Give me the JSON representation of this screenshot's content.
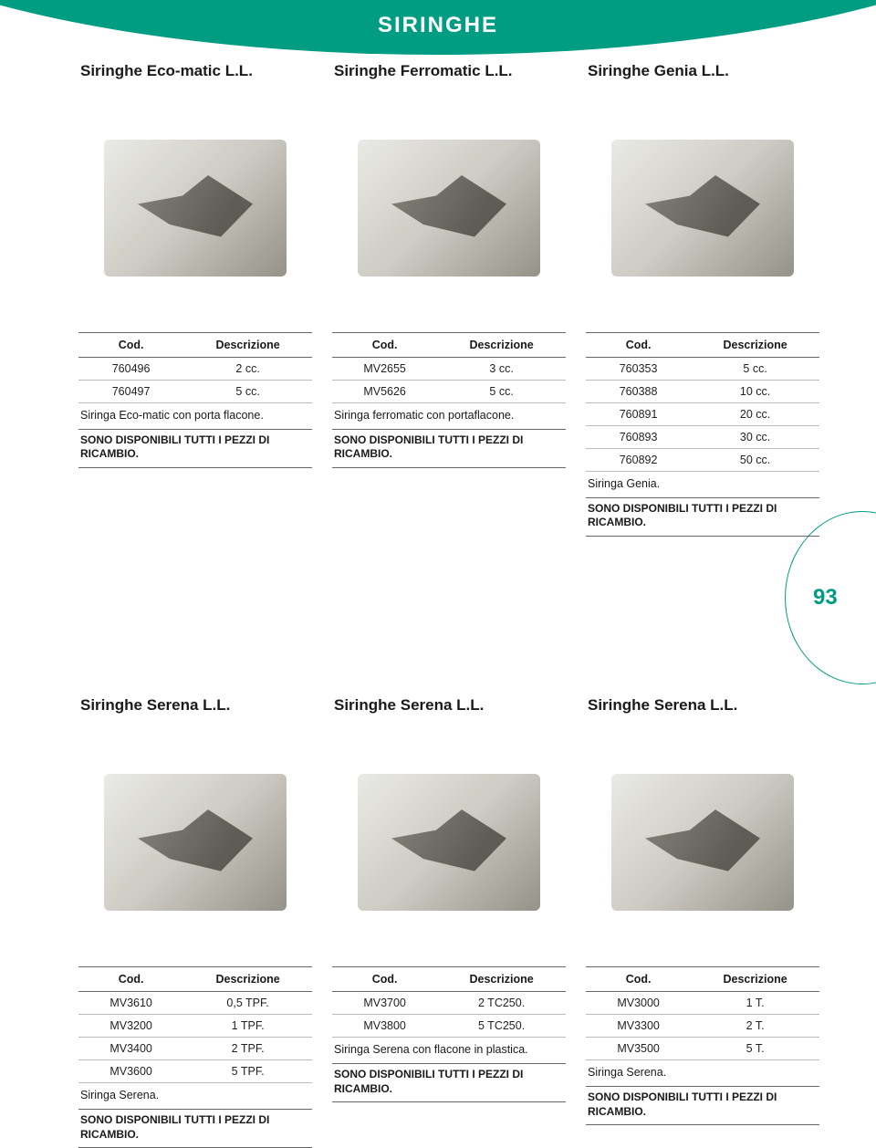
{
  "page": {
    "header_title": "SIRINGHE",
    "page_number": "93",
    "colors": {
      "accent": "#009d82",
      "text": "#1a1a1a",
      "rule_dark": "#666666",
      "rule_light": "#bbbbbb",
      "background": "#ffffff"
    },
    "typography": {
      "header_fontsize": 24,
      "title_fontsize": 17,
      "body_fontsize": 12.5,
      "header_weight": 700
    }
  },
  "table_headers": {
    "code": "Cod.",
    "desc": "Descrizione"
  },
  "note_spare": "SONO DISPONIBILI TUTTI I PEZZI DI RICAMBIO.",
  "cards": [
    {
      "title": "Siringhe Eco-matic L.L.",
      "rows": [
        {
          "code": "760496",
          "desc": "2 cc."
        },
        {
          "code": "760497",
          "desc": "5 cc."
        }
      ],
      "note": "Siringa Eco-matic con porta flacone."
    },
    {
      "title": "Siringhe Ferromatic L.L.",
      "rows": [
        {
          "code": "MV2655",
          "desc": "3 cc."
        },
        {
          "code": "MV5626",
          "desc": "5 cc."
        }
      ],
      "note": "Siringa ferromatic con portaflacone."
    },
    {
      "title": "Siringhe Genia L.L.",
      "rows": [
        {
          "code": "760353",
          "desc": "5 cc."
        },
        {
          "code": "760388",
          "desc": "10 cc."
        },
        {
          "code": "760891",
          "desc": "20 cc."
        },
        {
          "code": "760893",
          "desc": "30 cc."
        },
        {
          "code": "760892",
          "desc": "50 cc."
        }
      ],
      "note": "Siringa Genia."
    },
    {
      "title": "Siringhe Serena L.L.",
      "rows": [
        {
          "code": "MV3610",
          "desc": "0,5 TPF."
        },
        {
          "code": "MV3200",
          "desc": "1 TPF."
        },
        {
          "code": "MV3400",
          "desc": "2 TPF."
        },
        {
          "code": "MV3600",
          "desc": "5 TPF."
        }
      ],
      "note": "Siringa Serena."
    },
    {
      "title": "Siringhe Serena L.L.",
      "rows": [
        {
          "code": "MV3700",
          "desc": "2 TC250."
        },
        {
          "code": "MV3800",
          "desc": "5 TC250."
        }
      ],
      "note": "Siringa Serena con flacone in plastica."
    },
    {
      "title": "Siringhe  Serena L.L.",
      "rows": [
        {
          "code": "MV3000",
          "desc": "1 T."
        },
        {
          "code": "MV3300",
          "desc": "2 T."
        },
        {
          "code": "MV3500",
          "desc": "5 T."
        }
      ],
      "note": "Siringa Serena."
    }
  ]
}
